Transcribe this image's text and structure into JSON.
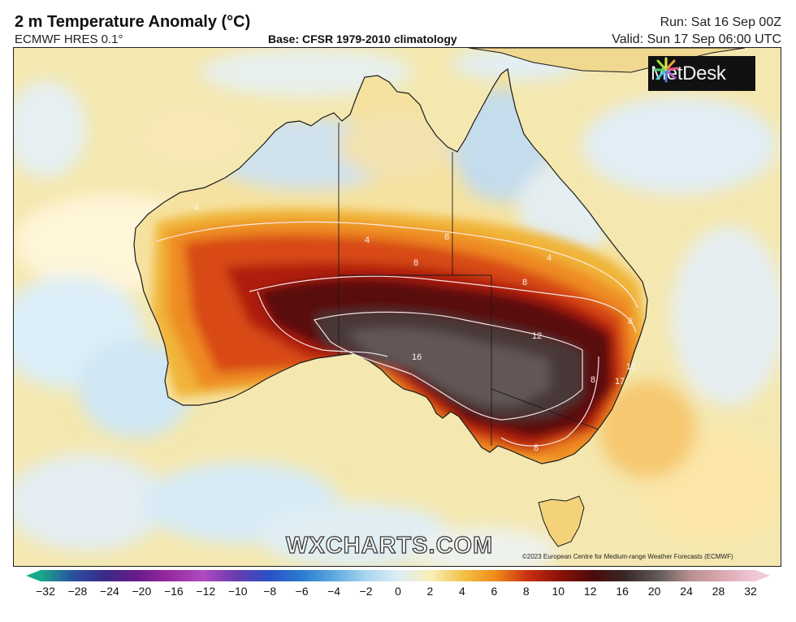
{
  "header": {
    "title": "2 m Temperature Anomaly (°C)",
    "model": "ECMWF HRES 0.1°",
    "base": "Base: CFSR 1979-2010 climatology",
    "run": "Run: Sat 16 Sep 00Z",
    "valid": "Valid: Sun 17 Sep 06:00 UTC"
  },
  "branding": {
    "metdesk": "MetDesk",
    "wxcharts": "WXCHARTS.COM",
    "copyright": "©2023 European Centre for Medium-range Weather Forecasts (ECMWF)"
  },
  "contour_labels": [
    "4",
    "4",
    "4",
    "8",
    "8",
    "8",
    "8",
    "12",
    "16",
    "17",
    "12",
    "8",
    "8",
    "8"
  ],
  "colorbar": {
    "ticks": [
      "−32",
      "−28",
      "−24",
      "−20",
      "−16",
      "−12",
      "−10",
      "−8",
      "−6",
      "−4",
      "−2",
      "0",
      "2",
      "4",
      "6",
      "8",
      "10",
      "12",
      "16",
      "20",
      "24",
      "28",
      "32"
    ],
    "colors": [
      "#1aa88a",
      "#2a4fa0",
      "#3a2a88",
      "#6b1a8a",
      "#9a2aa0",
      "#b04ac0",
      "#6a3cb0",
      "#2a50c8",
      "#2a7ad0",
      "#5aa8e0",
      "#a8d4ee",
      "#dceef6",
      "#f8efb8",
      "#f2c248",
      "#f08a18",
      "#c83010",
      "#8a1008",
      "#4a0a0a",
      "#3a2828",
      "#605858",
      "#b89090",
      "#dca8b0",
      "#f0c8d8"
    ],
    "zero_color": "#ffffff"
  }
}
